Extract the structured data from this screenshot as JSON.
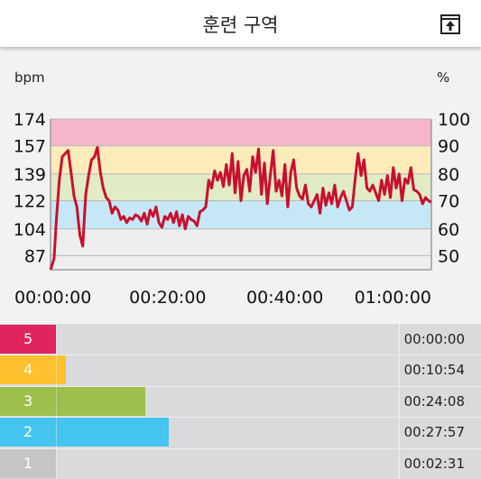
{
  "header": {
    "title": "훈련 구역"
  },
  "chart_data": {
    "type": "line",
    "left_unit": "bpm",
    "right_unit": "%",
    "left_ticks": [
      "174",
      "157",
      "139",
      "122",
      "104",
      "87"
    ],
    "right_ticks": [
      "100",
      "90",
      "80",
      "70",
      "60",
      "50"
    ],
    "x_ticks": [
      "00:00:00",
      "00:20:00",
      "00:40:00",
      "01:00:00"
    ],
    "xlim_minutes": [
      0,
      65
    ],
    "ylim_bpm": [
      78,
      174
    ],
    "zone_bands": [
      {
        "zone": 5,
        "from": 157,
        "to": 174,
        "color": "#f5b6cd"
      },
      {
        "zone": 4,
        "from": 139,
        "to": 157,
        "color": "#fdebb9"
      },
      {
        "zone": 3,
        "from": 122,
        "to": 139,
        "color": "#e1ebc6"
      },
      {
        "zone": 2,
        "from": 104,
        "to": 122,
        "color": "#c6e7f6"
      },
      {
        "zone": 1,
        "from": 78,
        "to": 104,
        "color": "#eeeeee"
      }
    ],
    "series": [
      {
        "color": "#c8102e",
        "x": [
          0,
          0.6,
          1,
          1.5,
          2,
          2.5,
          3,
          3.5,
          4,
          4.5,
          5,
          5.5,
          6,
          6.5,
          7,
          7.5,
          8,
          8.5,
          9,
          9.5,
          10,
          10.5,
          11,
          11.5,
          12,
          12.5,
          13,
          13.5,
          14,
          14.5,
          15,
          15.5,
          16,
          16.5,
          17,
          17.5,
          18,
          18.5,
          19,
          19.5,
          20,
          20.5,
          21,
          21.5,
          22,
          22.5,
          23,
          23.5,
          24,
          24.5,
          25,
          25.5,
          26,
          26.5,
          27,
          27.5,
          28,
          28.5,
          29,
          29.5,
          30,
          30.5,
          31,
          31.5,
          32,
          32.5,
          33,
          33.5,
          34,
          34.5,
          35,
          35.5,
          36,
          36.5,
          37,
          37.5,
          38,
          38.5,
          39,
          39.5,
          40,
          40.5,
          41,
          41.5,
          42,
          42.5,
          43,
          43.5,
          44,
          44.5,
          45,
          45.5,
          46,
          46.5,
          47,
          47.5,
          48,
          48.5,
          49,
          49.5,
          50,
          50.5,
          51,
          51.5,
          52,
          52.5,
          53,
          53.5,
          54,
          54.5,
          55,
          55.5,
          56,
          56.5,
          57,
          57.5,
          58,
          58.5,
          59,
          59.5,
          60,
          60.5,
          61,
          61.5,
          62,
          62.5,
          63,
          63.5,
          64,
          64.5,
          65
        ],
        "y": [
          77,
          85,
          110,
          135,
          150,
          152,
          154,
          140,
          125,
          118,
          100,
          93,
          126,
          138,
          148,
          150,
          156,
          140,
          130,
          124,
          122,
          114,
          118,
          116,
          110,
          112,
          108,
          111,
          110,
          113,
          112,
          109,
          114,
          107,
          116,
          112,
          118,
          108,
          105,
          112,
          110,
          114,
          108,
          115,
          106,
          113,
          104,
          112,
          110,
          109,
          106,
          115,
          116,
          118,
          135,
          130,
          141,
          135,
          140,
          131,
          145,
          132,
          152,
          127,
          147,
          122,
          138,
          142,
          128,
          150,
          140,
          155,
          126,
          146,
          120,
          138,
          154,
          128,
          135,
          125,
          145,
          118,
          140,
          148,
          130,
          125,
          123,
          132,
          120,
          118,
          122,
          126,
          114,
          130,
          119,
          127,
          120,
          132,
          118,
          124,
          128,
          122,
          116,
          118,
          136,
          152,
          138,
          148,
          130,
          128,
          132,
          127,
          122,
          135,
          126,
          138,
          124,
          143,
          130,
          139,
          122,
          136,
          133,
          143,
          129,
          128,
          126,
          120,
          124,
          122,
          121
        ]
      }
    ]
  },
  "zones": [
    {
      "label": "5",
      "time": "00:00:00",
      "color": "#e0245e",
      "fraction": 0.0
    },
    {
      "label": "4",
      "time": "00:10:54",
      "color": "#fdc12f",
      "fraction": 0.1646
    },
    {
      "label": "3",
      "time": "00:24:08",
      "color": "#9dc04c",
      "fraction": 0.3645
    },
    {
      "label": "2",
      "time": "00:27:57",
      "color": "#45c4ef",
      "fraction": 0.4222
    },
    {
      "label": "1",
      "time": "00:02:31",
      "color": "#c4c5c7",
      "fraction": 0.038
    }
  ]
}
